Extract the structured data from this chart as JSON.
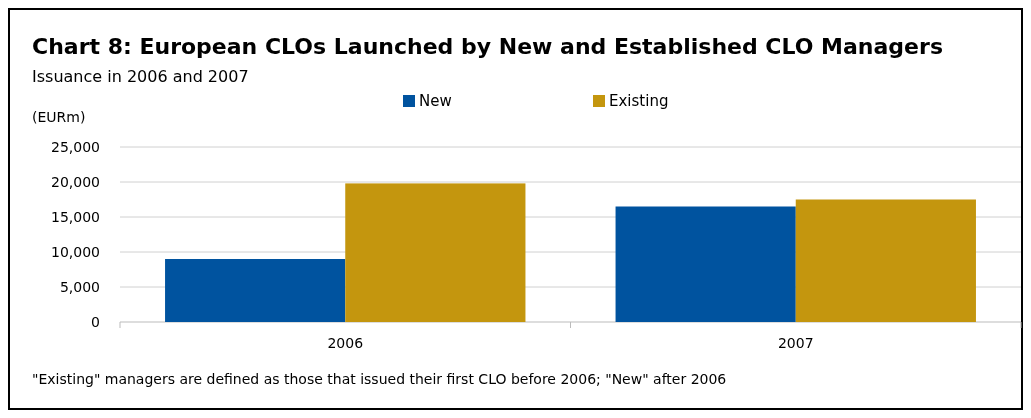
{
  "chart_data": {
    "type": "bar",
    "title": "Chart 8: European CLOs Launched by New and Established CLO Managers",
    "subtitle": "Issuance in 2006 and 2007",
    "ylabel": "(EURm)",
    "categories": [
      "2006",
      "2007"
    ],
    "series": [
      {
        "name": "New",
        "color": "#00539f",
        "values": [
          9000,
          16500
        ]
      },
      {
        "name": "Existing",
        "color": "#c4960e",
        "values": [
          19800,
          17500
        ]
      }
    ],
    "ylim": [
      0,
      25000
    ],
    "yticks": [
      {
        "value": 0,
        "label": "0"
      },
      {
        "value": 5000,
        "label": "5,000"
      },
      {
        "value": 10000,
        "label": "10,000"
      },
      {
        "value": 15000,
        "label": "15,000"
      },
      {
        "value": 20000,
        "label": "20,000"
      },
      {
        "value": 25000,
        "label": "25,000"
      }
    ],
    "grid": "y",
    "legend": "top",
    "annotations": [
      "\"Existing\" managers are defined as those that issued their first CLO before 2006; \"New\" after 2006"
    ]
  }
}
